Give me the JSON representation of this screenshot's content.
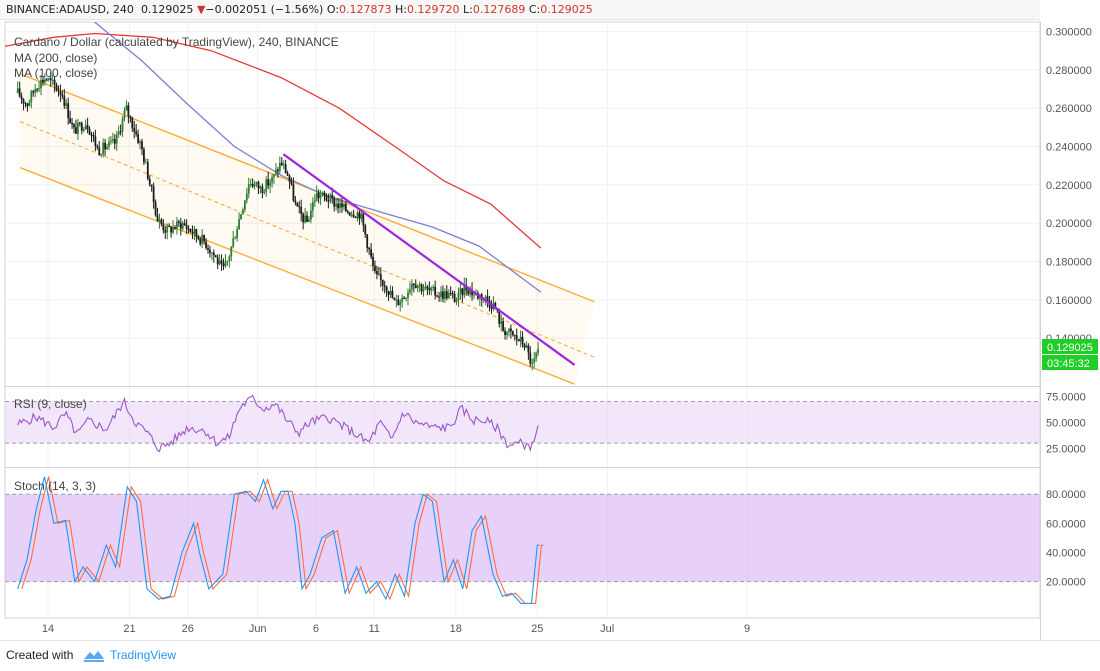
{
  "header": {
    "symbol": "BINANCE:ADAUSD, 240",
    "price": "0.129025",
    "change_arrow": "▼",
    "change": "−0.002051 (−1.56%)",
    "o_label": "O:",
    "o": "0.127873",
    "h_label": "H:",
    "h": "0.129720",
    "l_label": "L:",
    "l": "0.127689",
    "c_label": "C:",
    "c": "0.129025"
  },
  "legend": {
    "title": "Cardano / Dollar (calculated by TradingView), 240, BINANCE",
    "ma200": "MA (200, close)",
    "ma100": "MA (100, close)"
  },
  "price_label": "0.129025",
  "countdown_label": "03:45:32",
  "rsi_title": "RSI (9, close)",
  "stoch_title": "Stoch (14, 3, 3)",
  "footer": {
    "created": "Created with",
    "brand": "TradingView"
  },
  "colors": {
    "up": "#2e7d32",
    "down": "#1b1b1b",
    "ma200": "#e53935",
    "ma100": "#7b7fcf",
    "channel": "#ffa726",
    "trendline": "#9c27e0",
    "rsi": "#9c55c8",
    "stoch_k": "#2196f3",
    "stoch_d": "#ff6d3a",
    "price_tag": "#1fcf28",
    "brand": "#2196f3"
  },
  "chart_data": {
    "type": "candlestick",
    "price_axis": {
      "min": 0.115,
      "max": 0.305,
      "ticks": [
        "0.300000",
        "0.280000",
        "0.260000",
        "0.240000",
        "0.220000",
        "0.200000",
        "0.180000",
        "0.160000",
        "0.140000"
      ]
    },
    "time_axis": {
      "ticks": [
        "14",
        "21",
        "26",
        "Jun",
        "6",
        "11",
        "18",
        "25",
        "Jul",
        "9"
      ],
      "tick_days": [
        0,
        7,
        12,
        18,
        23,
        28,
        35,
        42,
        48,
        60
      ]
    },
    "ohlc_anchors": [
      {
        "day": -2.6,
        "close": 0.268
      },
      {
        "day": -1.8,
        "close": 0.262
      },
      {
        "day": -1.0,
        "close": 0.272
      },
      {
        "day": -0.2,
        "close": 0.276
      },
      {
        "day": 1.2,
        "close": 0.268
      },
      {
        "day": 2.2,
        "close": 0.248
      },
      {
        "day": 3.3,
        "close": 0.253
      },
      {
        "day": 4.3,
        "close": 0.238
      },
      {
        "day": 5.8,
        "close": 0.242
      },
      {
        "day": 6.7,
        "close": 0.26
      },
      {
        "day": 8.0,
        "close": 0.24
      },
      {
        "day": 8.7,
        "close": 0.222
      },
      {
        "day": 9.4,
        "close": 0.202
      },
      {
        "day": 10.2,
        "close": 0.196
      },
      {
        "day": 11.5,
        "close": 0.2
      },
      {
        "day": 12.5,
        "close": 0.195
      },
      {
        "day": 13.5,
        "close": 0.19
      },
      {
        "day": 14.3,
        "close": 0.183
      },
      {
        "day": 15.0,
        "close": 0.175
      },
      {
        "day": 15.4,
        "close": 0.18
      },
      {
        "day": 16.3,
        "close": 0.2
      },
      {
        "day": 17.3,
        "close": 0.222
      },
      {
        "day": 18.3,
        "close": 0.218
      },
      {
        "day": 19.3,
        "close": 0.223
      },
      {
        "day": 20.0,
        "close": 0.232
      },
      {
        "day": 20.6,
        "close": 0.225
      },
      {
        "day": 21.3,
        "close": 0.208
      },
      {
        "day": 22.2,
        "close": 0.2
      },
      {
        "day": 23.0,
        "close": 0.215
      },
      {
        "day": 24.0,
        "close": 0.213
      },
      {
        "day": 25.5,
        "close": 0.207
      },
      {
        "day": 26.8,
        "close": 0.205
      },
      {
        "day": 27.4,
        "close": 0.19
      },
      {
        "day": 28.1,
        "close": 0.172
      },
      {
        "day": 29.0,
        "close": 0.168
      },
      {
        "day": 29.8,
        "close": 0.158
      },
      {
        "day": 30.6,
        "close": 0.162
      },
      {
        "day": 31.3,
        "close": 0.17
      },
      {
        "day": 32.5,
        "close": 0.165
      },
      {
        "day": 33.5,
        "close": 0.163
      },
      {
        "day": 34.3,
        "close": 0.163
      },
      {
        "day": 35.1,
        "close": 0.16
      },
      {
        "day": 35.8,
        "close": 0.167
      },
      {
        "day": 36.6,
        "close": 0.163
      },
      {
        "day": 37.3,
        "close": 0.162
      },
      {
        "day": 38.3,
        "close": 0.157
      },
      {
        "day": 39.0,
        "close": 0.145
      },
      {
        "day": 40.2,
        "close": 0.14
      },
      {
        "day": 40.9,
        "close": 0.137
      },
      {
        "day": 41.6,
        "close": 0.125
      },
      {
        "day": 42.0,
        "close": 0.133
      },
      {
        "day": 42.2,
        "close": 0.129
      }
    ],
    "ma200": [
      {
        "day": -4.0,
        "value": 0.292
      },
      {
        "day": 0.5,
        "value": 0.297
      },
      {
        "day": 4.0,
        "value": 0.299
      },
      {
        "day": 9.0,
        "value": 0.297
      },
      {
        "day": 14.0,
        "value": 0.29
      },
      {
        "day": 20.0,
        "value": 0.276
      },
      {
        "day": 25.0,
        "value": 0.26
      },
      {
        "day": 30.0,
        "value": 0.239
      },
      {
        "day": 34.0,
        "value": 0.222
      },
      {
        "day": 38.0,
        "value": 0.21
      },
      {
        "day": 42.3,
        "value": 0.187
      }
    ],
    "ma100": [
      {
        "day": 4.0,
        "value": 0.305
      },
      {
        "day": 8.0,
        "value": 0.285
      },
      {
        "day": 12.0,
        "value": 0.262
      },
      {
        "day": 16.0,
        "value": 0.24
      },
      {
        "day": 20.0,
        "value": 0.225
      },
      {
        "day": 24.0,
        "value": 0.214
      },
      {
        "day": 29.0,
        "value": 0.205
      },
      {
        "day": 33.0,
        "value": 0.198
      },
      {
        "day": 37.0,
        "value": 0.188
      },
      {
        "day": 42.3,
        "value": 0.164
      }
    ],
    "channel": {
      "upper": [
        {
          "day": -2.4,
          "value": 0.278
        },
        {
          "day": 46.9,
          "value": 0.159
        }
      ],
      "middle": [
        {
          "day": -2.4,
          "value": 0.253
        },
        {
          "day": 46.9,
          "value": 0.13
        }
      ],
      "lower": [
        {
          "day": -2.4,
          "value": 0.229
        },
        {
          "day": 45.2,
          "value": 0.116
        }
      ]
    },
    "trendline": [
      {
        "day": 20.2,
        "value": 0.236
      },
      {
        "day": 45.2,
        "value": 0.126
      }
    ],
    "rsi": {
      "ticks": [
        "75.0000",
        "50.0000",
        "25.0000"
      ],
      "levels": [
        70,
        30
      ],
      "anchors": [
        {
          "day": -2.6,
          "value": 48
        },
        {
          "day": -1.0,
          "value": 55
        },
        {
          "day": 0.5,
          "value": 45
        },
        {
          "day": 1.5,
          "value": 58
        },
        {
          "day": 2.5,
          "value": 38
        },
        {
          "day": 3.5,
          "value": 52
        },
        {
          "day": 5.0,
          "value": 43
        },
        {
          "day": 6.5,
          "value": 70
        },
        {
          "day": 7.5,
          "value": 50
        },
        {
          "day": 8.5,
          "value": 40
        },
        {
          "day": 9.5,
          "value": 25
        },
        {
          "day": 10.5,
          "value": 30
        },
        {
          "day": 12.0,
          "value": 45
        },
        {
          "day": 13.5,
          "value": 42
        },
        {
          "day": 14.5,
          "value": 30
        },
        {
          "day": 15.5,
          "value": 35
        },
        {
          "day": 16.5,
          "value": 65
        },
        {
          "day": 17.5,
          "value": 73
        },
        {
          "day": 18.5,
          "value": 63
        },
        {
          "day": 19.5,
          "value": 68
        },
        {
          "day": 20.5,
          "value": 52
        },
        {
          "day": 21.5,
          "value": 40
        },
        {
          "day": 22.5,
          "value": 50
        },
        {
          "day": 24.0,
          "value": 55
        },
        {
          "day": 25.5,
          "value": 45
        },
        {
          "day": 26.5,
          "value": 38
        },
        {
          "day": 27.5,
          "value": 30
        },
        {
          "day": 28.5,
          "value": 50
        },
        {
          "day": 29.5,
          "value": 33
        },
        {
          "day": 30.5,
          "value": 60
        },
        {
          "day": 31.5,
          "value": 50
        },
        {
          "day": 33.0,
          "value": 45
        },
        {
          "day": 34.5,
          "value": 45
        },
        {
          "day": 35.5,
          "value": 63
        },
        {
          "day": 36.5,
          "value": 52
        },
        {
          "day": 37.5,
          "value": 52
        },
        {
          "day": 38.5,
          "value": 45
        },
        {
          "day": 39.5,
          "value": 28
        },
        {
          "day": 40.5,
          "value": 30
        },
        {
          "day": 41.6,
          "value": 27
        },
        {
          "day": 42.0,
          "value": 48
        },
        {
          "day": 42.2,
          "value": 45
        }
      ]
    },
    "stochastic": {
      "ticks": [
        "80.0000",
        "60.0000",
        "40.0000",
        "20.0000"
      ],
      "levels": [
        80,
        20
      ],
      "k": [
        {
          "day": -2.6,
          "value": 15
        },
        {
          "day": -1.8,
          "value": 35
        },
        {
          "day": -1.0,
          "value": 70
        },
        {
          "day": -0.3,
          "value": 92
        },
        {
          "day": 0.5,
          "value": 60
        },
        {
          "day": 1.5,
          "value": 62
        },
        {
          "day": 2.3,
          "value": 20
        },
        {
          "day": 3.0,
          "value": 30
        },
        {
          "day": 4.0,
          "value": 20
        },
        {
          "day": 5.0,
          "value": 45
        },
        {
          "day": 5.8,
          "value": 30
        },
        {
          "day": 6.8,
          "value": 85
        },
        {
          "day": 7.6,
          "value": 75
        },
        {
          "day": 8.5,
          "value": 15
        },
        {
          "day": 9.5,
          "value": 8
        },
        {
          "day": 10.5,
          "value": 10
        },
        {
          "day": 11.5,
          "value": 40
        },
        {
          "day": 12.5,
          "value": 60
        },
        {
          "day": 13.0,
          "value": 40
        },
        {
          "day": 13.8,
          "value": 15
        },
        {
          "day": 15.0,
          "value": 25
        },
        {
          "day": 16.0,
          "value": 80
        },
        {
          "day": 17.0,
          "value": 82
        },
        {
          "day": 17.8,
          "value": 75
        },
        {
          "day": 18.5,
          "value": 90
        },
        {
          "day": 19.3,
          "value": 70
        },
        {
          "day": 20.0,
          "value": 82
        },
        {
          "day": 20.6,
          "value": 82
        },
        {
          "day": 21.2,
          "value": 60
        },
        {
          "day": 21.8,
          "value": 15
        },
        {
          "day": 22.5,
          "value": 25
        },
        {
          "day": 23.5,
          "value": 50
        },
        {
          "day": 24.5,
          "value": 55
        },
        {
          "day": 25.5,
          "value": 12
        },
        {
          "day": 26.5,
          "value": 30
        },
        {
          "day": 27.3,
          "value": 12
        },
        {
          "day": 28.2,
          "value": 20
        },
        {
          "day": 29.0,
          "value": 8
        },
        {
          "day": 29.8,
          "value": 25
        },
        {
          "day": 30.6,
          "value": 10
        },
        {
          "day": 31.5,
          "value": 60
        },
        {
          "day": 32.2,
          "value": 80
        },
        {
          "day": 33.0,
          "value": 75
        },
        {
          "day": 34.0,
          "value": 20
        },
        {
          "day": 34.8,
          "value": 35
        },
        {
          "day": 35.6,
          "value": 15
        },
        {
          "day": 36.4,
          "value": 55
        },
        {
          "day": 37.2,
          "value": 65
        },
        {
          "day": 38.2,
          "value": 25
        },
        {
          "day": 39.0,
          "value": 10
        },
        {
          "day": 39.8,
          "value": 12
        },
        {
          "day": 40.6,
          "value": 5
        },
        {
          "day": 41.5,
          "value": 5
        },
        {
          "day": 42.0,
          "value": 45
        },
        {
          "day": 42.2,
          "value": 45
        }
      ]
    }
  }
}
